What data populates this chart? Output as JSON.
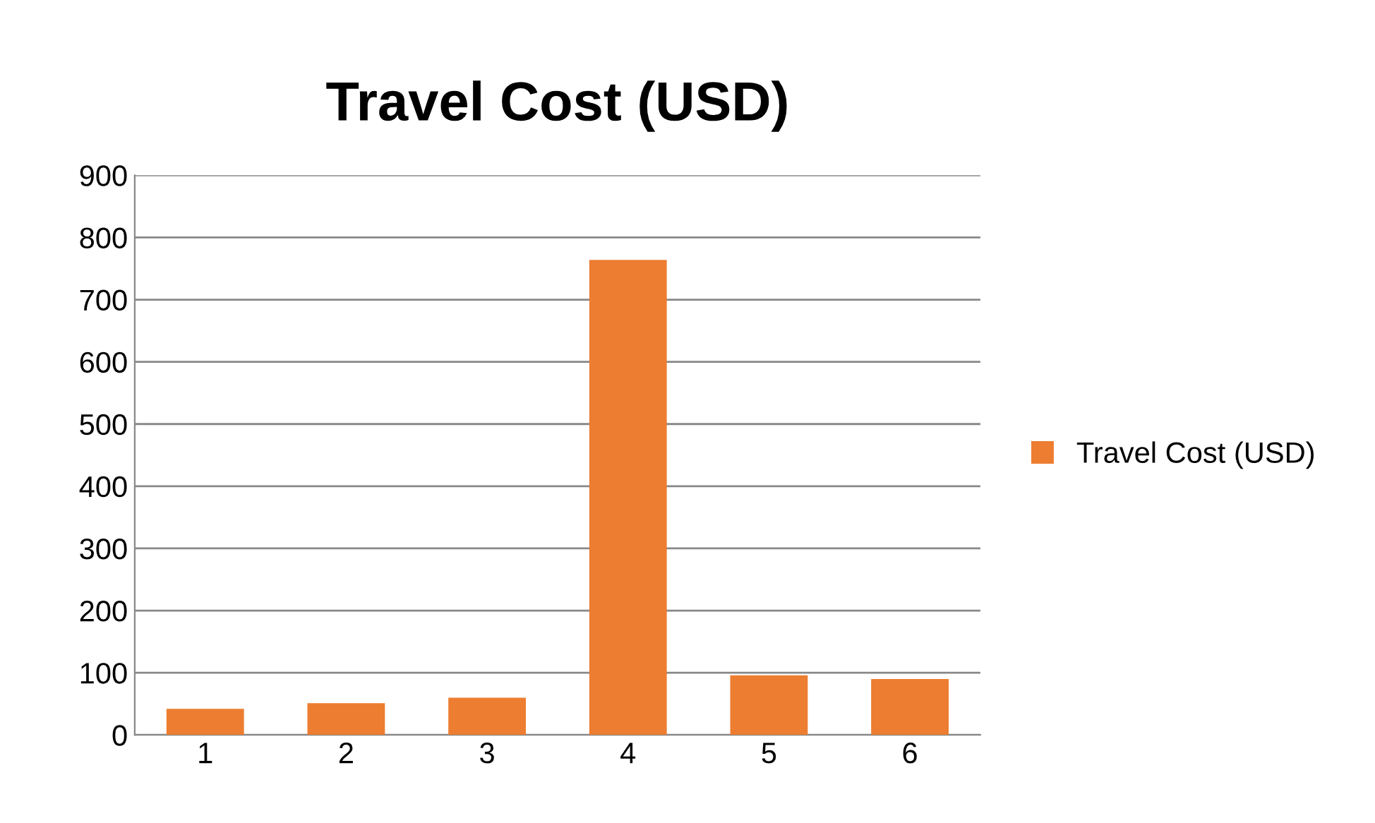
{
  "chart_data": {
    "type": "bar",
    "title": "Travel Cost (USD)",
    "categories": [
      "1",
      "2",
      "3",
      "4",
      "5",
      "6"
    ],
    "series": [
      {
        "name": "Travel Cost (USD)",
        "color": "#ed7d31",
        "values": [
          42,
          51,
          60,
          764,
          96,
          90
        ]
      }
    ],
    "ylim": [
      0,
      900
    ],
    "yticks": [
      0,
      100,
      200,
      300,
      400,
      500,
      600,
      700,
      800,
      900
    ],
    "grid": "y",
    "legend": "right"
  }
}
